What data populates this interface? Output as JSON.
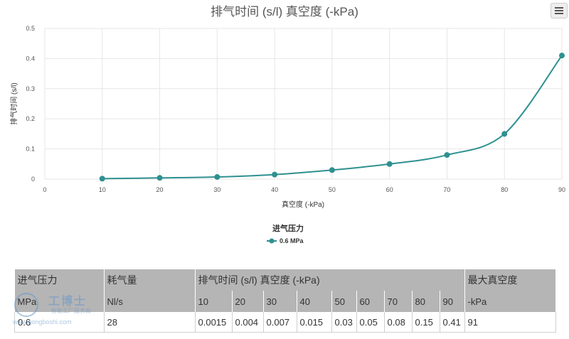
{
  "chart_data": {
    "type": "line",
    "title": "排气时间 (s/l) 真空度 (-kPa)",
    "xlabel": "真空度 (-kPa)",
    "ylabel": "排气时间 (s/l)",
    "xlim": [
      0,
      90
    ],
    "ylim": [
      0,
      0.5
    ],
    "x_ticks": [
      "0",
      "10",
      "20",
      "30",
      "40",
      "50",
      "60",
      "70",
      "80",
      "90"
    ],
    "y_ticks": [
      "0",
      "0.1",
      "0.2",
      "0.3",
      "0.4",
      "0.5"
    ],
    "grid": true,
    "legend_title": "进气压力",
    "series": [
      {
        "name": "0.6 MPa",
        "color": "#2f9090",
        "x": [
          10,
          20,
          30,
          40,
          50,
          60,
          70,
          80,
          90
        ],
        "y": [
          0.0015,
          0.004,
          0.007,
          0.015,
          0.03,
          0.05,
          0.08,
          0.15,
          0.41
        ]
      }
    ]
  },
  "menu_icon": "hamburger-menu-icon",
  "table": {
    "header_row1": [
      "进气压力",
      "耗气量",
      "排气时间 (s/l) 真空度 (-kPa)",
      "最大真空度"
    ],
    "header_row2": [
      "MPa",
      "Nl/s",
      "10",
      "20",
      "30",
      "40",
      "50",
      "60",
      "70",
      "80",
      "90",
      "-kPa"
    ],
    "row": [
      "0.6",
      "28",
      "0.0015",
      "0.004",
      "0.007",
      "0.015",
      "0.03",
      "0.05",
      "0.08",
      "0.15",
      "0.41",
      "91"
    ]
  },
  "watermark": {
    "name": "工博士",
    "tagline": "智能工厂服务商",
    "url": "www.gongboshi.com"
  }
}
